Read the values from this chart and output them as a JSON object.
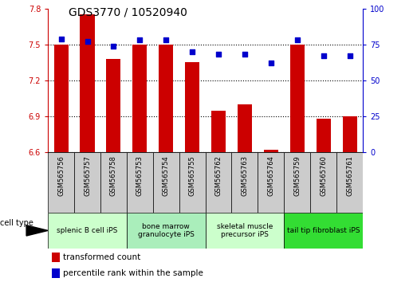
{
  "title": "GDS3770 / 10520940",
  "samples": [
    "GSM565756",
    "GSM565757",
    "GSM565758",
    "GSM565753",
    "GSM565754",
    "GSM565755",
    "GSM565762",
    "GSM565763",
    "GSM565764",
    "GSM565759",
    "GSM565760",
    "GSM565761"
  ],
  "bar_values": [
    7.5,
    7.75,
    7.38,
    7.5,
    7.5,
    7.35,
    6.95,
    7.0,
    6.62,
    7.5,
    6.88,
    6.9
  ],
  "percentile_values": [
    79,
    77,
    74,
    78,
    78,
    70,
    68,
    68,
    62,
    78,
    67,
    67
  ],
  "ylim_left": [
    6.6,
    7.8
  ],
  "ylim_right": [
    0,
    100
  ],
  "yticks_left": [
    6.6,
    6.9,
    7.2,
    7.5,
    7.8
  ],
  "yticks_right": [
    0,
    25,
    50,
    75,
    100
  ],
  "bar_color": "#cc0000",
  "scatter_color": "#0000cc",
  "bar_width": 0.55,
  "groups": [
    {
      "label": "splenic B cell iPS",
      "start": 0,
      "end": 3,
      "color": "#ccffcc"
    },
    {
      "label": "bone marrow\ngranulocyte iPS",
      "start": 3,
      "end": 6,
      "color": "#aaeebb"
    },
    {
      "label": "skeletal muscle\nprecursor iPS",
      "start": 6,
      "end": 9,
      "color": "#ccffcc"
    },
    {
      "label": "tail tip fibroblast iPS",
      "start": 9,
      "end": 12,
      "color": "#33dd33"
    }
  ],
  "cell_type_label": "cell type",
  "legend_bar_label": "transformed count",
  "legend_scatter_label": "percentile rank within the sample",
  "yticklabel_color_left": "#cc0000",
  "yticklabel_color_right": "#0000cc",
  "sample_bg_color": "#cccccc",
  "title_fontsize": 10,
  "tick_fontsize": 7,
  "sample_fontsize": 6,
  "group_fontsize": 6.5,
  "legend_fontsize": 7.5
}
